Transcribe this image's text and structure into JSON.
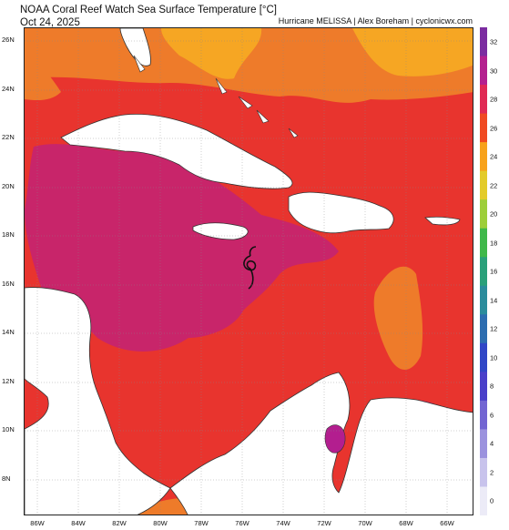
{
  "header": {
    "title": "NOAA Coral Reef Watch Sea Surface Temperature [°C]",
    "date": "Oct 24, 2025",
    "credit": "Hurricane MELISSA | Alex Boreham | cyclonicwx.com"
  },
  "map": {
    "lat_labels": [
      "26N",
      "24N",
      "22N",
      "20N",
      "18N",
      "16N",
      "14N",
      "12N",
      "10N",
      "8N"
    ],
    "lon_labels": [
      "86W",
      "84W",
      "82W",
      "80W",
      "78W",
      "76W",
      "74W",
      "72W",
      "70W",
      "68W",
      "66W"
    ],
    "colors": {
      "land": "#ffffff",
      "sst_26": "#f6a623",
      "sst_28": "#ee7b2a",
      "sst_29": "#e8342e",
      "sst_30": "#c8256a",
      "sst_31": "#b31e8f"
    }
  },
  "colorbar": {
    "ticks": [
      "32",
      "30",
      "28",
      "26",
      "24",
      "22",
      "20",
      "18",
      "16",
      "14",
      "12",
      "10",
      "8",
      "6",
      "4",
      "2",
      "0"
    ],
    "colors": [
      "#7b2ca0",
      "#b4208f",
      "#e02a54",
      "#f04a22",
      "#f7a21c",
      "#e3cb2a",
      "#9dce3a",
      "#3fb84a",
      "#2aa07a",
      "#2b8c9c",
      "#2d6db0",
      "#3046c6",
      "#4a3fc9",
      "#7265d2",
      "#9b92de",
      "#c8c3ec",
      "#ecebf7"
    ]
  }
}
